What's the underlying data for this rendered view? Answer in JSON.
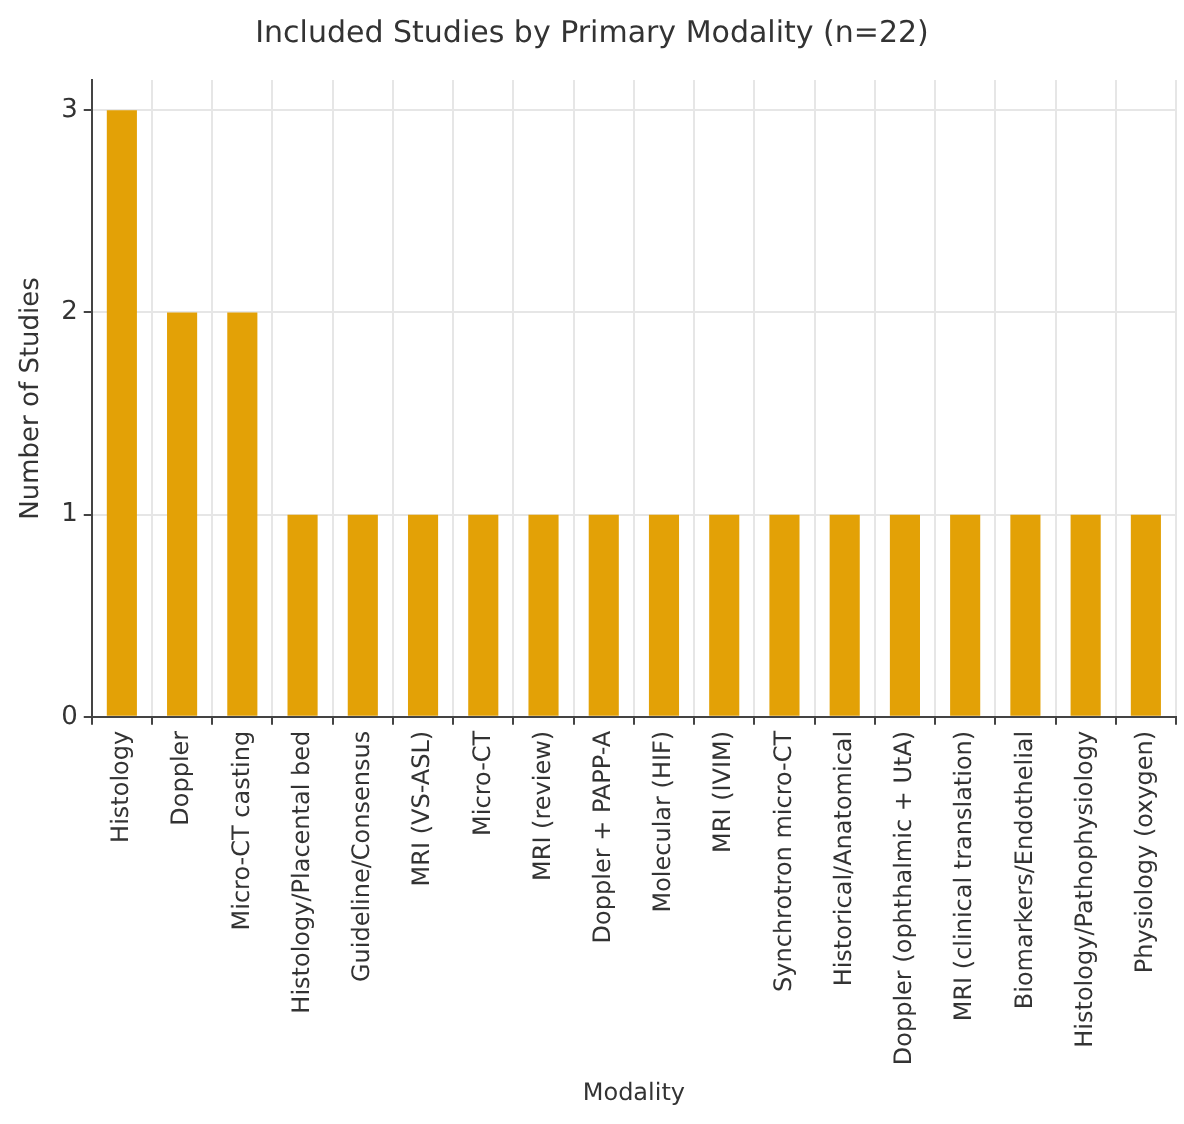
{
  "chart_data": {
    "type": "bar",
    "title": "Included Studies by Primary Modality (n=22)",
    "xlabel": "Modality",
    "ylabel": "Number of Studies",
    "categories": [
      "Histology",
      "Doppler",
      "Micro-CT casting",
      "Histology/Placental bed",
      "Guideline/Consensus",
      "MRI (VS-ASL)",
      "Micro-CT",
      "MRI (review)",
      "Doppler + PAPP-A",
      "Molecular (HIF)",
      "MRI (IVIM)",
      "Synchrotron micro-CT",
      "Historical/Anatomical",
      "Doppler (ophthalmic + UtA)",
      "MRI (clinical translation)",
      "Biomarkers/Endothelial",
      "Histology/Pathophysiology",
      "Physiology (oxygen)"
    ],
    "values": [
      3,
      2,
      2,
      1,
      1,
      1,
      1,
      1,
      1,
      1,
      1,
      1,
      1,
      1,
      1,
      1,
      1,
      1
    ],
    "color": "#e3a106",
    "ylim": [
      0,
      3.15
    ],
    "yticks": [
      0,
      1,
      2,
      3
    ],
    "grid": true,
    "legend": false
  }
}
